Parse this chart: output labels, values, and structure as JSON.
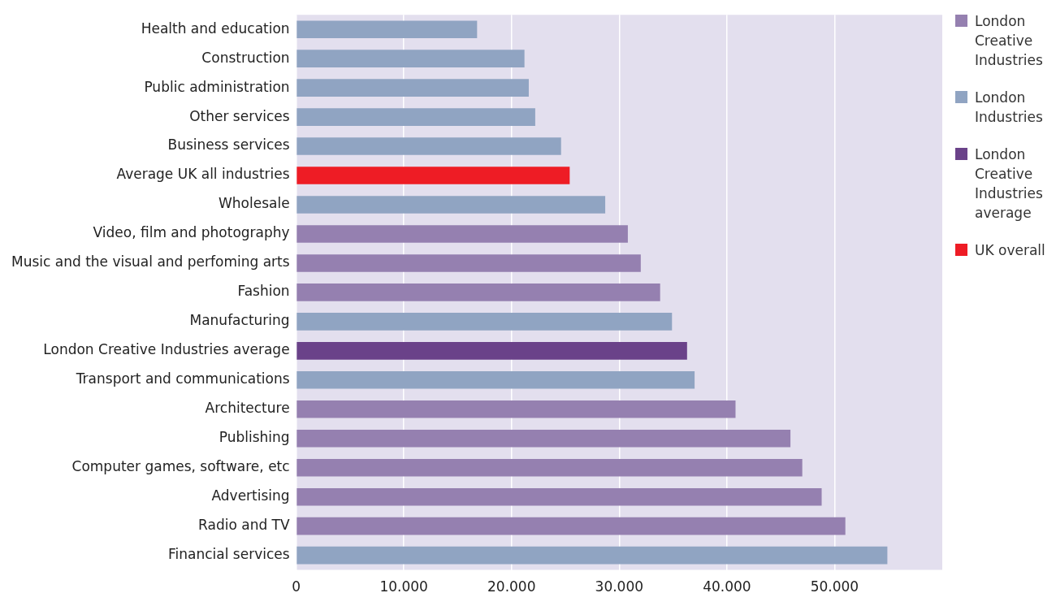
{
  "chart_data": {
    "type": "bar",
    "orientation": "horizontal",
    "categories": [
      "Health and education",
      "Construction",
      "Public administration",
      "Other services",
      "Business services",
      "Average UK all industries",
      "Wholesale",
      "Video, film and photography",
      "Music and the visual and perfoming arts",
      "Fashion",
      "Manufacturing",
      "London Creative Industries average",
      "Transport and communications",
      "Architecture",
      "Publishing",
      "Computer games, software, etc",
      "Advertising",
      "Radio and TV",
      "Financial services"
    ],
    "series": [
      {
        "name": "London Creative Industries",
        "color": "#9580b0",
        "values": [
          null,
          null,
          null,
          null,
          null,
          null,
          null,
          30800,
          32000,
          33800,
          null,
          null,
          null,
          40800,
          45900,
          47000,
          48800,
          51000,
          null
        ]
      },
      {
        "name": "London Industries",
        "color": "#90a4c2",
        "values": [
          16800,
          21200,
          21600,
          22200,
          24600,
          null,
          28700,
          null,
          null,
          null,
          34900,
          null,
          37000,
          null,
          null,
          null,
          null,
          null,
          54900
        ]
      },
      {
        "name": "London Creative Industries average",
        "color": "#6a4289",
        "values": [
          null,
          null,
          null,
          null,
          null,
          null,
          null,
          null,
          null,
          null,
          null,
          36300,
          null,
          null,
          null,
          null,
          null,
          null,
          null
        ]
      },
      {
        "name": "UK overall",
        "color": "#ee1c25",
        "values": [
          null,
          null,
          null,
          null,
          null,
          25400,
          null,
          null,
          null,
          null,
          null,
          null,
          null,
          null,
          null,
          null,
          null,
          null,
          null
        ]
      }
    ],
    "xlim": [
      0,
      60000
    ],
    "xticks": [
      0,
      {
        "value": 10000,
        "label": "10.000"
      },
      {
        "value": 20000,
        "label": "20.000"
      },
      {
        "value": 30000,
        "label": "30.000"
      },
      {
        "value": 40000,
        "label": "40.000"
      },
      {
        "value": 50000,
        "label": "50.000"
      }
    ],
    "grid": "x",
    "legend": "top right"
  }
}
